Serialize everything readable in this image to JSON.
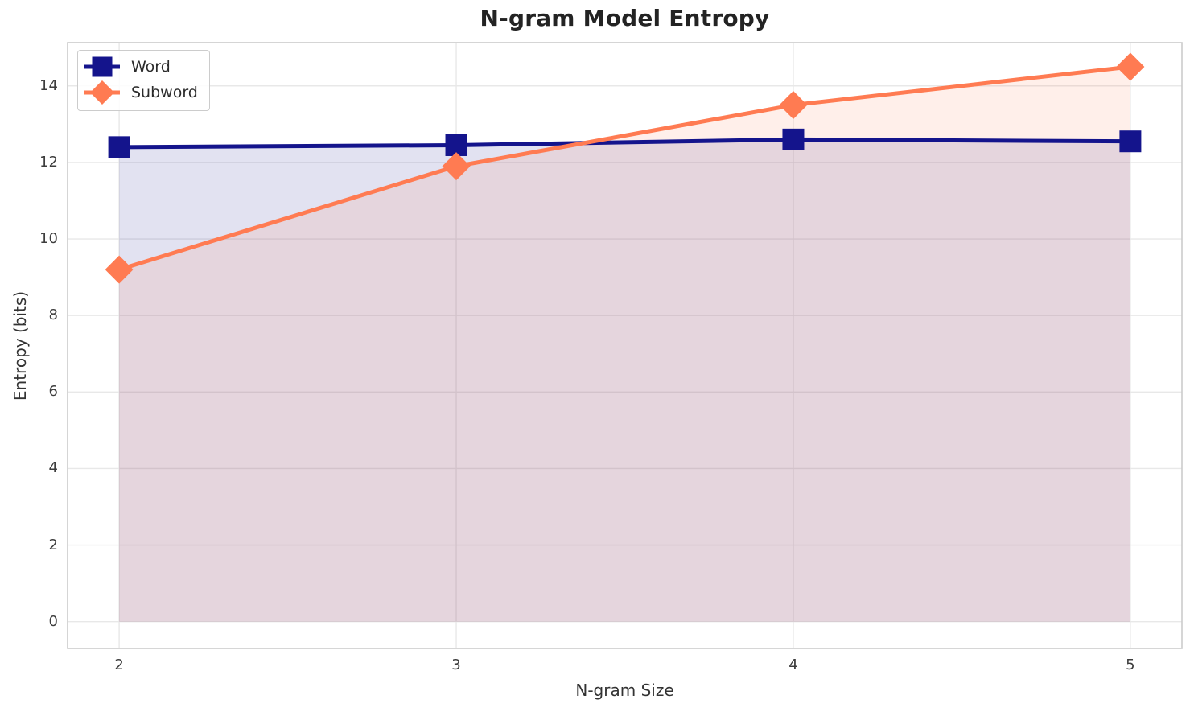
{
  "title": "N-gram Model Entropy",
  "axes": {
    "xlabel": "N-gram Size",
    "ylabel": "Entropy (bits)"
  },
  "chart_data": {
    "type": "line",
    "title": "N-gram Model Entropy",
    "xlabel": "N-gram Size",
    "ylabel": "Entropy (bits)",
    "x": [
      2,
      3,
      4,
      5
    ],
    "series": [
      {
        "name": "Word",
        "values": [
          12.4,
          12.45,
          12.6,
          12.55
        ],
        "color": "#14148C",
        "marker": "square",
        "marker_size": 27,
        "line_width": 5,
        "fill_to_zero": true,
        "fill_alpha": 0.12
      },
      {
        "name": "Subword",
        "values": [
          9.2,
          11.9,
          13.5,
          14.5
        ],
        "color": "#FF7B52",
        "marker": "diamond",
        "marker_size": 35,
        "line_width": 5,
        "fill_to_zero": true,
        "fill_alpha": 0.12
      }
    ],
    "xticks": [
      "2",
      "3",
      "4",
      "5"
    ],
    "xtick_values": [
      2,
      3,
      4,
      5
    ],
    "yticks": [
      "0",
      "2",
      "4",
      "6",
      "8",
      "10",
      "12",
      "14"
    ],
    "ytick_values": [
      0,
      2,
      4,
      6,
      8,
      10,
      12,
      14
    ],
    "xlim": [
      1.847,
      5.153
    ],
    "ylim": [
      -0.7,
      15.13
    ],
    "grid": true,
    "legend_position": "upper left"
  },
  "style": {
    "grid_color": "#E8E8E8",
    "spine_color": "#CBCBCB",
    "background": "#FFFFFF"
  }
}
